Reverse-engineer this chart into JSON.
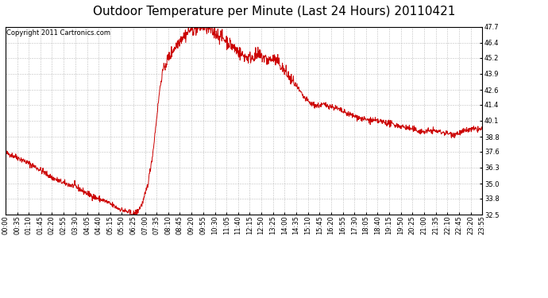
{
  "title": "Outdoor Temperature per Minute (Last 24 Hours) 20110421",
  "copyright": "Copyright 2011 Cartronics.com",
  "line_color": "#cc0000",
  "bg_color": "#ffffff",
  "plot_bg_color": "#ffffff",
  "grid_color": "#b0b0b0",
  "yticks": [
    32.5,
    33.8,
    35.0,
    36.3,
    37.6,
    38.8,
    40.1,
    41.4,
    42.6,
    43.9,
    45.2,
    46.4,
    47.7
  ],
  "ylim": [
    32.5,
    47.7
  ],
  "xtick_labels": [
    "00:00",
    "00:35",
    "01:10",
    "01:45",
    "02:20",
    "02:55",
    "03:30",
    "04:05",
    "04:40",
    "05:15",
    "05:50",
    "06:25",
    "07:00",
    "07:35",
    "08:10",
    "08:45",
    "09:20",
    "09:55",
    "10:30",
    "11:05",
    "11:40",
    "12:15",
    "12:50",
    "13:25",
    "14:00",
    "14:35",
    "15:10",
    "15:45",
    "16:20",
    "16:55",
    "17:30",
    "18:05",
    "18:40",
    "19:15",
    "19:50",
    "20:25",
    "21:00",
    "21:35",
    "22:10",
    "22:45",
    "23:20",
    "23:55"
  ],
  "title_fontsize": 11,
  "tick_fontsize": 6,
  "copyright_fontsize": 6,
  "line_width": 0.7
}
